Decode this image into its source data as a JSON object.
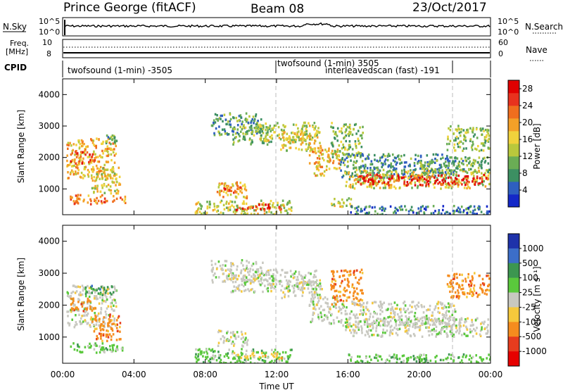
{
  "header": {
    "station": "Prince George (fitACF)",
    "beam": "Beam 08",
    "date": "23/Oct/2017"
  },
  "top_panels": {
    "nsky_label": "N.Sky",
    "nsky_ticks": [
      "10^5",
      "10^0"
    ],
    "nsearch_label": "N.Search",
    "nsearch_ticks": [
      "10^5",
      "10^0"
    ],
    "freq_label_1": "Freq.",
    "freq_label_2": "[MHz]",
    "freq_ticks": [
      "10",
      "8"
    ],
    "nave_label": "Nave",
    "nave_ticks": [
      "60",
      "0"
    ],
    "cpid_label": "CPID",
    "cpid_segments": [
      "twofsound (1-min) -3505",
      "twofsound (1-min) 3505",
      "interleavedscan (fast) -191"
    ]
  },
  "chart_data": [
    {
      "type": "heatmap",
      "name": "power",
      "ylabel": "Slant Range [km]",
      "xlabel": "",
      "yticks": [
        "1000",
        "2000",
        "3000",
        "4000"
      ],
      "ylim": [
        180,
        4500
      ],
      "colorbar_label": "Power [dB]",
      "colorbar_ticks": [
        "4",
        "8",
        "12",
        "16",
        "20",
        "24",
        "28"
      ],
      "colorbar_range": [
        0,
        30
      ],
      "colors": [
        "#1428c8",
        "#2e5fc0",
        "#3c8f62",
        "#6aad55",
        "#b9c83c",
        "#f0d23c",
        "#f4a028",
        "#f06e1e",
        "#e8321e",
        "#e00000"
      ],
      "regions": [
        {
          "t0": 0.2,
          "t1": 3.0,
          "r0": 1300,
          "r1": 2600,
          "level": 18
        },
        {
          "t0": 0.4,
          "t1": 1.8,
          "r0": 1800,
          "r1": 2200,
          "level": 24
        },
        {
          "t0": 1.6,
          "t1": 3.2,
          "r0": 850,
          "r1": 1700,
          "level": 16
        },
        {
          "t0": 0.3,
          "t1": 3.5,
          "r0": 500,
          "r1": 800,
          "level": 22
        },
        {
          "t0": 2.4,
          "t1": 3.0,
          "r0": 2400,
          "r1": 2700,
          "level": 10
        },
        {
          "t0": 8.6,
          "t1": 10.4,
          "r0": 700,
          "r1": 1200,
          "level": 18
        },
        {
          "t0": 9.0,
          "t1": 10.0,
          "r0": 850,
          "r1": 1050,
          "level": 24
        },
        {
          "t0": 7.4,
          "t1": 12.8,
          "r0": 150,
          "r1": 620,
          "level": 14
        },
        {
          "t0": 9.5,
          "t1": 12.3,
          "r0": 300,
          "r1": 500,
          "level": 25
        },
        {
          "t0": 14.8,
          "t1": 16.2,
          "r0": 400,
          "r1": 700,
          "level": 14
        },
        {
          "t0": 8.3,
          "t1": 11.2,
          "r0": 2700,
          "r1": 3400,
          "level": 9
        },
        {
          "t0": 9.4,
          "t1": 11.8,
          "r0": 2400,
          "r1": 2950,
          "level": 11
        },
        {
          "t0": 11.0,
          "t1": 14.3,
          "r0": 2500,
          "r1": 3100,
          "level": 14
        },
        {
          "t0": 12.2,
          "t1": 14.5,
          "r0": 2200,
          "r1": 2800,
          "level": 16
        },
        {
          "t0": 13.8,
          "t1": 15.5,
          "r0": 1400,
          "r1": 2300,
          "level": 18
        },
        {
          "t0": 15.0,
          "t1": 16.8,
          "r0": 2000,
          "r1": 3100,
          "level": 12
        },
        {
          "t0": 15.5,
          "t1": 22.0,
          "r0": 1300,
          "r1": 2100,
          "level": 8
        },
        {
          "t0": 15.8,
          "t1": 23.9,
          "r0": 1000,
          "r1": 1600,
          "level": 15
        },
        {
          "t0": 16.5,
          "t1": 23.8,
          "r0": 1100,
          "r1": 1450,
          "level": 27
        },
        {
          "t0": 20.0,
          "t1": 23.9,
          "r0": 1500,
          "r1": 2000,
          "level": 10
        },
        {
          "t0": 21.5,
          "t1": 23.9,
          "r0": 2200,
          "r1": 3000,
          "level": 12
        },
        {
          "t0": 16.0,
          "t1": 24.0,
          "r0": 150,
          "r1": 450,
          "level": 6
        }
      ]
    },
    {
      "type": "heatmap",
      "name": "velocity",
      "ylabel": "Slant Range [km]",
      "xlabel": "Time UT",
      "yticks": [
        "1000",
        "2000",
        "3000",
        "4000"
      ],
      "ylim": [
        180,
        4500
      ],
      "xticks": [
        "00:00",
        "04:00",
        "08:00",
        "12:00",
        "16:00",
        "20:00",
        "00:00"
      ],
      "xlim": [
        0,
        24
      ],
      "colorbar_label": "Velocity [m s⁻¹]",
      "colorbar_ticks": [
        "1000",
        "500",
        "100",
        "25",
        "-25",
        "-100",
        "-500",
        "-1000"
      ],
      "colors": [
        "#1e32aa",
        "#3c6ec8",
        "#3c9650",
        "#5ac83c",
        "#c8c8c0",
        "#f5c83c",
        "#f58c1e",
        "#e63c1e",
        "#e60000"
      ],
      "regions": [
        {
          "t0": 0.2,
          "t1": 3.0,
          "r0": 1300,
          "r1": 2600,
          "level": 4
        },
        {
          "t0": 0.4,
          "t1": 1.8,
          "r0": 1800,
          "r1": 2200,
          "level": 6
        },
        {
          "t0": 1.6,
          "t1": 3.2,
          "r0": 850,
          "r1": 1700,
          "level": 6
        },
        {
          "t0": 0.3,
          "t1": 3.5,
          "r0": 500,
          "r1": 800,
          "level": 3
        },
        {
          "t0": 1.2,
          "t1": 2.8,
          "r0": 2300,
          "r1": 2600,
          "level": 2
        },
        {
          "t0": 8.6,
          "t1": 10.4,
          "r0": 700,
          "r1": 1200,
          "level": 4
        },
        {
          "t0": 7.4,
          "t1": 12.8,
          "r0": 150,
          "r1": 620,
          "level": 3
        },
        {
          "t0": 9.5,
          "t1": 12.3,
          "r0": 300,
          "r1": 500,
          "level": 5
        },
        {
          "t0": 8.3,
          "t1": 11.2,
          "r0": 2700,
          "r1": 3400,
          "level": 4
        },
        {
          "t0": 9.4,
          "t1": 11.8,
          "r0": 2400,
          "r1": 2950,
          "level": 4
        },
        {
          "t0": 11.0,
          "t1": 14.3,
          "r0": 2500,
          "r1": 3100,
          "level": 4
        },
        {
          "t0": 12.2,
          "t1": 14.5,
          "r0": 2200,
          "r1": 2800,
          "level": 4
        },
        {
          "t0": 13.8,
          "t1": 15.5,
          "r0": 1400,
          "r1": 2300,
          "level": 4
        },
        {
          "t0": 15.0,
          "t1": 16.8,
          "r0": 2000,
          "r1": 3100,
          "level": 6
        },
        {
          "t0": 15.5,
          "t1": 22.0,
          "r0": 1300,
          "r1": 2100,
          "level": 4
        },
        {
          "t0": 15.8,
          "t1": 23.9,
          "r0": 1000,
          "r1": 1600,
          "level": 4
        },
        {
          "t0": 21.5,
          "t1": 23.9,
          "r0": 2200,
          "r1": 3000,
          "level": 6
        },
        {
          "t0": 16.0,
          "t1": 24.0,
          "r0": 150,
          "r1": 450,
          "level": 3
        }
      ]
    }
  ]
}
